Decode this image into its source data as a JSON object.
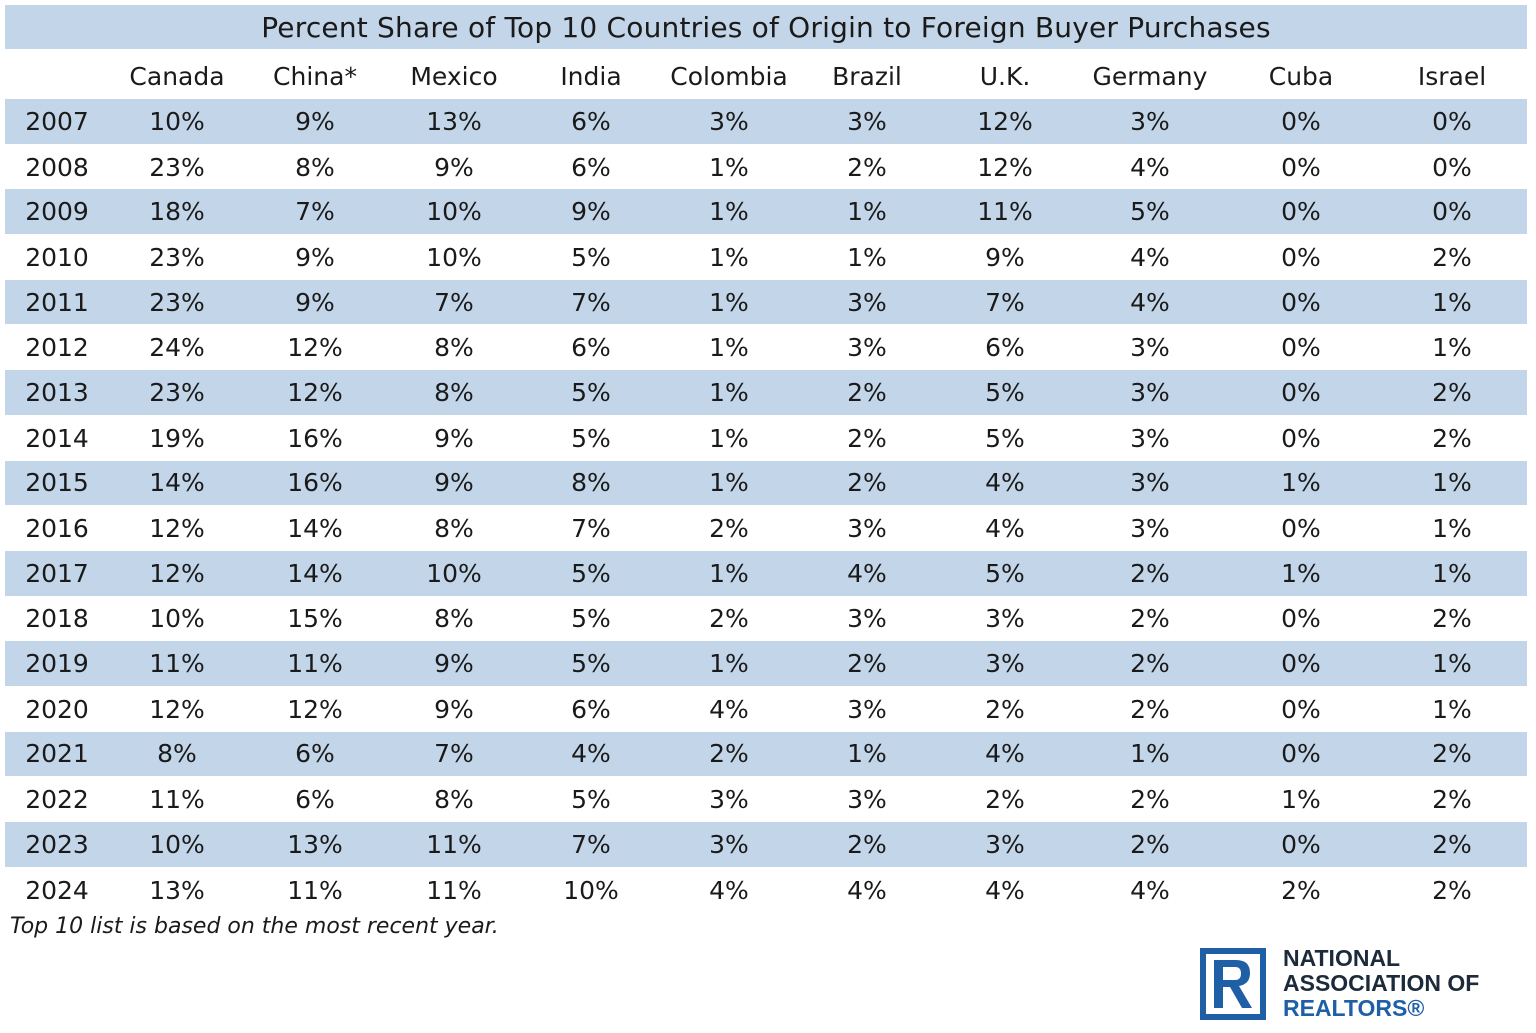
{
  "chart_data": {
    "type": "table",
    "title": "Percent Share of Top 10 Countries of Origin to Foreign Buyer Purchases",
    "columns": [
      "Canada",
      "China*",
      "Mexico",
      "India",
      "Colombia",
      "Brazil",
      "U.K.",
      "Germany",
      "Cuba",
      "Israel"
    ],
    "rows": [
      {
        "year": "2007",
        "values": [
          "10%",
          "9%",
          "13%",
          "6%",
          "3%",
          "3%",
          "12%",
          "3%",
          "0%",
          "0%"
        ]
      },
      {
        "year": "2008",
        "values": [
          "23%",
          "8%",
          "9%",
          "6%",
          "1%",
          "2%",
          "12%",
          "4%",
          "0%",
          "0%"
        ]
      },
      {
        "year": "2009",
        "values": [
          "18%",
          "7%",
          "10%",
          "9%",
          "1%",
          "1%",
          "11%",
          "5%",
          "0%",
          "0%"
        ]
      },
      {
        "year": "2010",
        "values": [
          "23%",
          "9%",
          "10%",
          "5%",
          "1%",
          "1%",
          "9%",
          "4%",
          "0%",
          "2%"
        ]
      },
      {
        "year": "2011",
        "values": [
          "23%",
          "9%",
          "7%",
          "7%",
          "1%",
          "3%",
          "7%",
          "4%",
          "0%",
          "1%"
        ]
      },
      {
        "year": "2012",
        "values": [
          "24%",
          "12%",
          "8%",
          "6%",
          "1%",
          "3%",
          "6%",
          "3%",
          "0%",
          "1%"
        ]
      },
      {
        "year": "2013",
        "values": [
          "23%",
          "12%",
          "8%",
          "5%",
          "1%",
          "2%",
          "5%",
          "3%",
          "0%",
          "2%"
        ]
      },
      {
        "year": "2014",
        "values": [
          "19%",
          "16%",
          "9%",
          "5%",
          "1%",
          "2%",
          "5%",
          "3%",
          "0%",
          "2%"
        ]
      },
      {
        "year": "2015",
        "values": [
          "14%",
          "16%",
          "9%",
          "8%",
          "1%",
          "2%",
          "4%",
          "3%",
          "1%",
          "1%"
        ]
      },
      {
        "year": "2016",
        "values": [
          "12%",
          "14%",
          "8%",
          "7%",
          "2%",
          "3%",
          "4%",
          "3%",
          "0%",
          "1%"
        ]
      },
      {
        "year": "2017",
        "values": [
          "12%",
          "14%",
          "10%",
          "5%",
          "1%",
          "4%",
          "5%",
          "2%",
          "1%",
          "1%"
        ]
      },
      {
        "year": "2018",
        "values": [
          "10%",
          "15%",
          "8%",
          "5%",
          "2%",
          "3%",
          "3%",
          "2%",
          "0%",
          "2%"
        ]
      },
      {
        "year": "2019",
        "values": [
          "11%",
          "11%",
          "9%",
          "5%",
          "1%",
          "2%",
          "3%",
          "2%",
          "0%",
          "1%"
        ]
      },
      {
        "year": "2020",
        "values": [
          "12%",
          "12%",
          "9%",
          "6%",
          "4%",
          "3%",
          "2%",
          "2%",
          "0%",
          "1%"
        ]
      },
      {
        "year": "2021",
        "values": [
          "8%",
          "6%",
          "7%",
          "4%",
          "2%",
          "1%",
          "4%",
          "1%",
          "0%",
          "2%"
        ]
      },
      {
        "year": "2022",
        "values": [
          "11%",
          "6%",
          "8%",
          "5%",
          "3%",
          "3%",
          "2%",
          "2%",
          "1%",
          "2%"
        ]
      },
      {
        "year": "2023",
        "values": [
          "10%",
          "13%",
          "11%",
          "7%",
          "3%",
          "2%",
          "3%",
          "2%",
          "0%",
          "2%"
        ]
      },
      {
        "year": "2024",
        "values": [
          "13%",
          "11%",
          "11%",
          "10%",
          "4%",
          "4%",
          "4%",
          "4%",
          "2%",
          "2%"
        ]
      }
    ],
    "footnote": "Top 10 list is based on the most recent year."
  },
  "logo": {
    "line1": "NATIONAL",
    "line2": "ASSOCIATION OF",
    "line3": "REALTORS®"
  },
  "colors": {
    "stripe": "#c3d5e8",
    "logo_blue": "#1f5fa6"
  }
}
